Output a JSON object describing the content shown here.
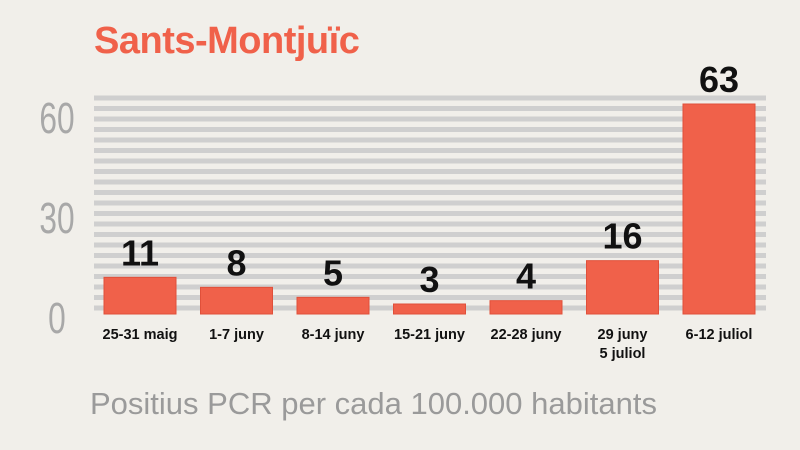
{
  "chart_data": {
    "type": "bar",
    "title": "Sants-Montjuïc",
    "caption": "Positius PCR per cada 100.000 habitants",
    "categories": [
      [
        "25-31 maig"
      ],
      [
        "1-7 juny"
      ],
      [
        "8-14 juny"
      ],
      [
        "15-21 juny"
      ],
      [
        "22-28 juny"
      ],
      [
        "29 juny",
        "5 juliol"
      ],
      [
        "6-12 juliol"
      ]
    ],
    "values": [
      11,
      8,
      5,
      3,
      4,
      16,
      63
    ],
    "yticks": [
      0,
      30,
      60
    ],
    "ylim": [
      0,
      63
    ],
    "grid": true,
    "colors": {
      "bar": "#f0614a",
      "bar_edge": "#e0503a",
      "title": "#f0614a",
      "grid": "#cfcfcf",
      "tick": "#a8a8a8",
      "label": "#111111",
      "caption": "#9a9a9a",
      "background": "#f1efea"
    }
  }
}
